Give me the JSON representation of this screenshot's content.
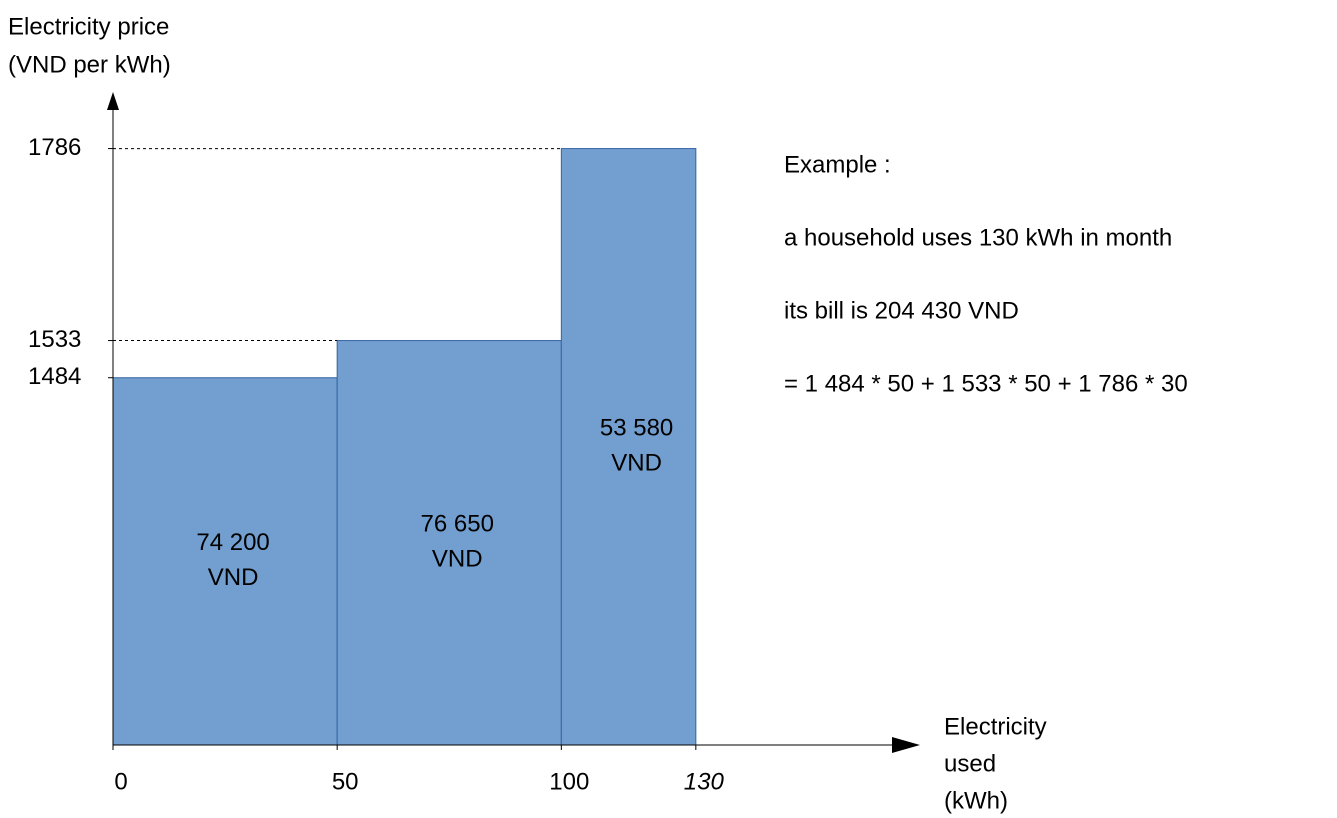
{
  "chart_data": {
    "type": "histogram",
    "y_label": [
      "Electricity price",
      "(VND per kWh)"
    ],
    "x_label": [
      "Electricity",
      "used",
      "(kWh)"
    ],
    "bins": [
      0,
      50,
      100,
      130
    ],
    "values": [
      1484,
      1533,
      1786
    ],
    "color": "#729fcf",
    "bar_labels": [
      [
        "74 200",
        "VND"
      ],
      [
        "76 650",
        "VND"
      ],
      [
        "53 580",
        "VND"
      ]
    ],
    "xlim": [
      0,
      180
    ],
    "xticks": [
      0,
      50,
      100,
      130
    ],
    "ylim": [
      1000,
      1850
    ],
    "yticks": [
      1484,
      1533,
      1786
    ],
    "notes": [
      "Example :",
      "a household uses 130 kWh in month",
      "its bill is 204 430 VND",
      "= 1 484 * 50 + 1 533 * 50 + 1 786 * 30"
    ]
  }
}
